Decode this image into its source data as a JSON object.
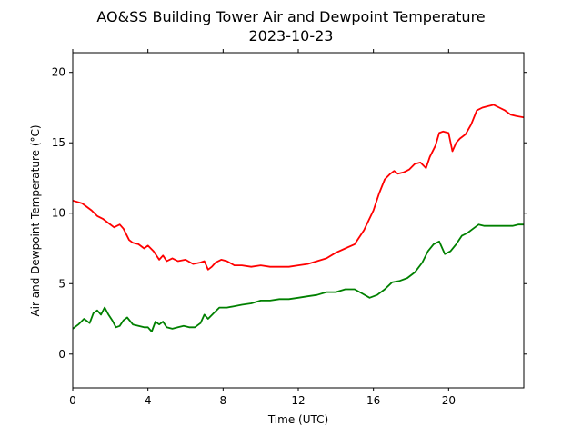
{
  "chart_data": {
    "type": "line",
    "title": "AO&SS Building Tower Air and Dewpoint Temperature",
    "subtitle": "2023-10-23",
    "xlabel": "Time (UTC)",
    "ylabel": "Air and Dewpoint Temperature (°C)",
    "xlim": [
      0,
      24
    ],
    "ylim": [
      -2.4,
      21.4
    ],
    "xticks": [
      0,
      4,
      8,
      12,
      16,
      20
    ],
    "xtick_labels": [
      "0",
      "4",
      "8",
      "12",
      "16",
      "20"
    ],
    "yticks": [
      0,
      5,
      10,
      15,
      20
    ],
    "ytick_labels": [
      "0",
      "5",
      "10",
      "15",
      "20"
    ],
    "grid": false,
    "series": [
      {
        "color": "#ff0000",
        "x": [
          0,
          0.5,
          1.0,
          1.3,
          1.6,
          1.9,
          2.2,
          2.5,
          2.7,
          3.0,
          3.2,
          3.5,
          3.8,
          4.0,
          4.3,
          4.6,
          4.8,
          5.0,
          5.3,
          5.6,
          6.0,
          6.4,
          6.8,
          7.0,
          7.2,
          7.4,
          7.6,
          7.9,
          8.2,
          8.6,
          9.0,
          9.5,
          10.0,
          10.5,
          11.0,
          11.5,
          12.0,
          12.5,
          13.0,
          13.5,
          14.0,
          14.5,
          15.0,
          15.5,
          16.0,
          16.3,
          16.6,
          16.9,
          17.1,
          17.3,
          17.6,
          17.9,
          18.2,
          18.5,
          18.8,
          19.0,
          19.3,
          19.5,
          19.7,
          20.0,
          20.2,
          20.4,
          20.6,
          20.9,
          21.2,
          21.5,
          21.8,
          22.1,
          22.4,
          22.7,
          23.0,
          23.3,
          23.6,
          24.0
        ],
        "values": [
          10.9,
          10.7,
          10.2,
          9.8,
          9.6,
          9.3,
          9.0,
          9.2,
          8.9,
          8.1,
          7.9,
          7.8,
          7.5,
          7.7,
          7.3,
          6.7,
          7.0,
          6.6,
          6.8,
          6.6,
          6.7,
          6.4,
          6.5,
          6.6,
          6.0,
          6.2,
          6.5,
          6.7,
          6.6,
          6.3,
          6.3,
          6.2,
          6.3,
          6.2,
          6.2,
          6.2,
          6.3,
          6.4,
          6.6,
          6.8,
          7.2,
          7.5,
          7.8,
          8.8,
          10.2,
          11.4,
          12.4,
          12.8,
          13.0,
          12.8,
          12.9,
          13.1,
          13.5,
          13.6,
          13.2,
          14.0,
          14.8,
          15.7,
          15.8,
          15.7,
          14.4,
          15.0,
          15.3,
          15.6,
          16.3,
          17.3,
          17.5,
          17.6,
          17.7,
          17.5,
          17.3,
          17.0,
          16.9,
          16.8
        ]
      },
      {
        "color": "#008000",
        "x": [
          0,
          0.3,
          0.6,
          0.9,
          1.1,
          1.3,
          1.5,
          1.7,
          1.9,
          2.1,
          2.3,
          2.5,
          2.7,
          2.9,
          3.2,
          3.5,
          3.8,
          4.0,
          4.2,
          4.4,
          4.6,
          4.8,
          5.0,
          5.3,
          5.6,
          5.9,
          6.2,
          6.5,
          6.8,
          7.0,
          7.2,
          7.5,
          7.8,
          8.2,
          8.6,
          9.0,
          9.5,
          10.0,
          10.5,
          11.0,
          11.5,
          12.0,
          12.5,
          13.0,
          13.5,
          14.0,
          14.5,
          15.0,
          15.4,
          15.8,
          16.2,
          16.6,
          17.0,
          17.4,
          17.8,
          18.2,
          18.6,
          18.9,
          19.2,
          19.5,
          19.8,
          20.1,
          20.4,
          20.7,
          21.0,
          21.3,
          21.6,
          21.9,
          22.2,
          22.6,
          23.0,
          23.4,
          23.7,
          24.0
        ],
        "values": [
          1.8,
          2.1,
          2.5,
          2.2,
          2.9,
          3.1,
          2.8,
          3.3,
          2.8,
          2.4,
          1.9,
          2.0,
          2.4,
          2.6,
          2.1,
          2.0,
          1.9,
          1.9,
          1.6,
          2.3,
          2.1,
          2.3,
          1.9,
          1.8,
          1.9,
          2.0,
          1.9,
          1.9,
          2.2,
          2.8,
          2.5,
          2.9,
          3.3,
          3.3,
          3.4,
          3.5,
          3.6,
          3.8,
          3.8,
          3.9,
          3.9,
          4.0,
          4.1,
          4.2,
          4.4,
          4.4,
          4.6,
          4.6,
          4.3,
          4.0,
          4.2,
          4.6,
          5.1,
          5.2,
          5.4,
          5.8,
          6.5,
          7.3,
          7.8,
          8.0,
          7.1,
          7.3,
          7.8,
          8.4,
          8.6,
          8.9,
          9.2,
          9.1,
          9.1,
          9.1,
          9.1,
          9.1,
          9.2,
          9.2
        ]
      }
    ]
  }
}
